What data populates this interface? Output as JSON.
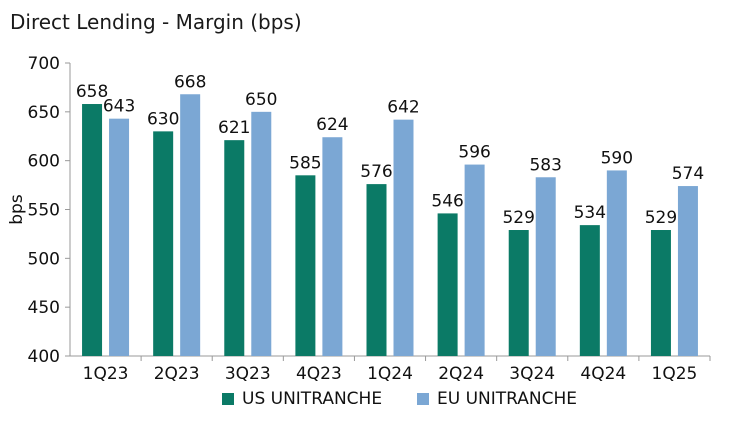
{
  "chart_data": {
    "type": "bar",
    "title": "Direct Lending - Margin (bps)",
    "ylabel": "bps",
    "xlabel": "",
    "ylim": [
      400,
      700
    ],
    "yticks": [
      400,
      450,
      500,
      550,
      600,
      650,
      700
    ],
    "categories": [
      "1Q23",
      "2Q23",
      "3Q23",
      "4Q23",
      "1Q24",
      "2Q24",
      "3Q24",
      "4Q24",
      "1Q25"
    ],
    "series": [
      {
        "name": "US UNITRANCHE",
        "color": "#0b7a66",
        "values": [
          658,
          630,
          621,
          585,
          576,
          546,
          529,
          534,
          529
        ]
      },
      {
        "name": "EU UNITRANCHE",
        "color": "#7ba7d4",
        "values": [
          643,
          668,
          650,
          624,
          642,
          596,
          583,
          590,
          574
        ]
      }
    ],
    "grid": false,
    "legend": "bottom-center"
  }
}
